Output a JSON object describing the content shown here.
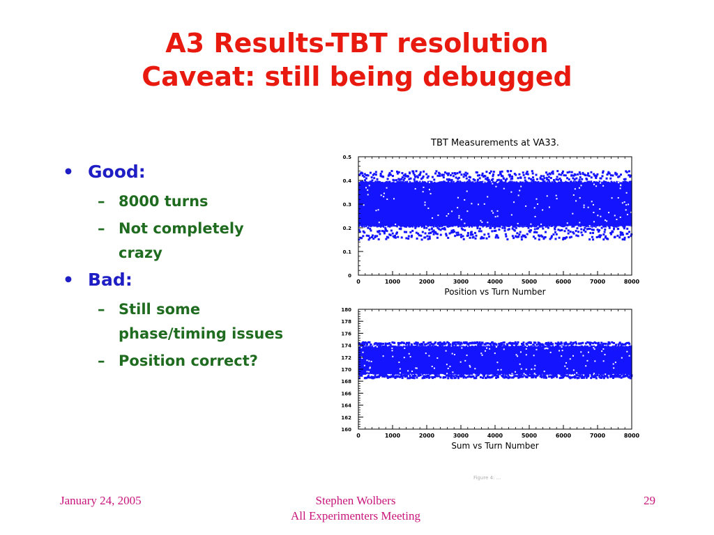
{
  "slide": {
    "title_line1": "A3 Results-TBT resolution",
    "title_line2": "Caveat: still being debugged",
    "bullets": [
      {
        "label": "Good:",
        "subs": [
          [
            "8000 turns"
          ],
          [
            "Not completely",
            "crazy"
          ]
        ]
      },
      {
        "label": "Bad:",
        "subs": [
          [
            "Still some",
            "phase/timing issues"
          ],
          [
            "Position correct?"
          ]
        ]
      }
    ],
    "bullet_glyph": "•",
    "dash_glyph": "–"
  },
  "footer": {
    "date": "January 24, 2005",
    "author": "Stephen Wolbers",
    "meeting": "All Experimenters Meeting",
    "page": "29"
  },
  "figure_caption": "Figure 4: ...",
  "colors": {
    "title": "#e8190e",
    "bullet": "#1e1ec4",
    "sub": "#1f6b1f",
    "footer": "#c8147a",
    "points": "#1414ff"
  },
  "chart_data": [
    {
      "type": "scatter",
      "title": "TBT Measurements at VA33.",
      "xlabel": "Position vs Turn Number",
      "ylabel": "",
      "xlim": [
        0,
        8000
      ],
      "ylim": [
        0,
        0.5
      ],
      "x_ticks": [
        "0",
        "1000",
        "2000",
        "3000",
        "4000",
        "5000",
        "6000",
        "7000",
        "8000"
      ],
      "y_ticks": [
        "0",
        "0.1",
        "0.2",
        "0.3",
        "0.4",
        "0.5"
      ],
      "band": {
        "center": 0.3,
        "core_low": 0.2,
        "core_high": 0.4,
        "outer_low": 0.15,
        "outer_high": 0.44,
        "n_points": 8000
      },
      "grid": false
    },
    {
      "type": "scatter",
      "title": "",
      "xlabel": "Sum vs Turn Number",
      "ylabel": "",
      "xlim": [
        0,
        8000
      ],
      "ylim": [
        160,
        180
      ],
      "x_ticks": [
        "0",
        "1000",
        "2000",
        "3000",
        "4000",
        "5000",
        "6000",
        "7000",
        "8000"
      ],
      "y_ticks": [
        "160",
        "162",
        "164",
        "166",
        "168",
        "170",
        "172",
        "174",
        "176",
        "178",
        "180"
      ],
      "band": {
        "center": 171.5,
        "core_low": 169,
        "core_high": 174,
        "outer_low": 168.5,
        "outer_high": 174.5,
        "n_points": 8000
      },
      "grid": false
    }
  ]
}
